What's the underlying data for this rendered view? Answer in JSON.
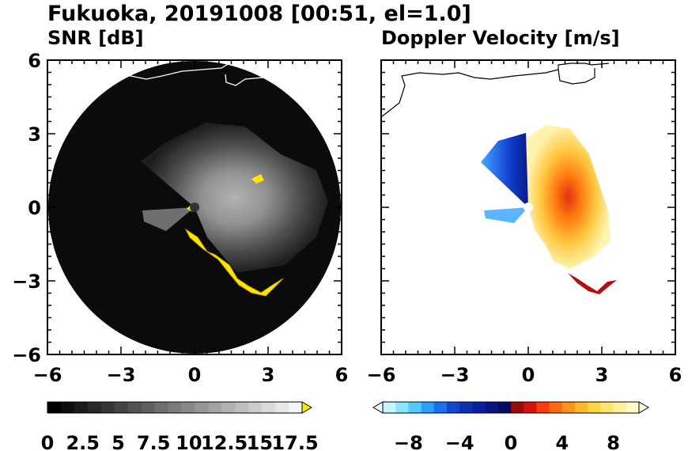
{
  "title": "Fukuoka, 20191008 [00:51, el=1.0]",
  "chart_data": [
    {
      "type": "heatmap",
      "title": "SNR [dB]",
      "projection": "polar radar scan, plan position indicator",
      "xlim": [
        -6,
        6
      ],
      "ylim": [
        -6,
        6
      ],
      "xticks": [
        "−6",
        "−3",
        "0",
        "3",
        "6"
      ],
      "yticks": [
        "6",
        "3",
        "0",
        "−3",
        "−6"
      ],
      "grid": false,
      "colorbar": {
        "orientation": "horizontal",
        "range": [
          0,
          18
        ],
        "labels": [
          "0",
          "2.5",
          "5",
          "7.5",
          "10",
          "12.5",
          "15",
          "17.5"
        ],
        "extend": "max",
        "colors": {
          "low": "#000000",
          "high": "#ffffff",
          "over": "#ffe600"
        }
      }
    },
    {
      "type": "heatmap",
      "title": "Doppler Velocity [m/s]",
      "projection": "polar radar scan, plan position indicator",
      "xlim": [
        -6,
        6
      ],
      "ylim": [
        -6,
        6
      ],
      "xticks": [
        "−6",
        "−3",
        "0",
        "3",
        "6"
      ],
      "yticks": [],
      "grid": false,
      "colorbar": {
        "orientation": "horizontal",
        "range": [
          -10,
          10
        ],
        "labels": [
          "−8",
          "−4",
          "0",
          "4",
          "8"
        ],
        "extend": "both",
        "colors": {
          "negative": "#0a1f9e",
          "zero": "#ffffff",
          "positive": "#d9100e"
        }
      }
    }
  ]
}
